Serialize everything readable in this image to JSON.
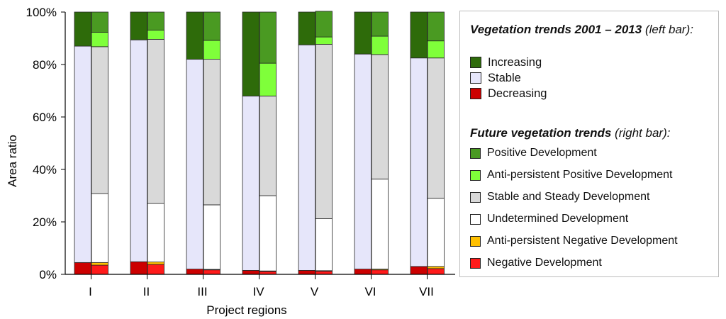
{
  "chart_data": {
    "type": "stacked-bar",
    "xlabel": "Project regions",
    "ylabel": "Area ratio",
    "ylim": [
      0,
      100
    ],
    "yticks": [
      "0%",
      "20%",
      "40%",
      "60%",
      "80%",
      "100%"
    ],
    "categories": [
      "I",
      "II",
      "III",
      "IV",
      "V",
      "VI",
      "VII"
    ],
    "left_bar": {
      "title": "Vegetation trends 2001 – 2013",
      "title_suffix": "(left bar):",
      "series": [
        {
          "name": "Decreasing",
          "color": "#cc0000",
          "values": [
            4.5,
            4.8,
            2,
            1.5,
            1.5,
            2,
            3
          ]
        },
        {
          "name": "Stable",
          "color": "#e6e6fa",
          "values": [
            82.5,
            84.6,
            80,
            66.5,
            86,
            82,
            79.5
          ]
        },
        {
          "name": "Increasing",
          "color": "#2e6b0a",
          "values": [
            13,
            10.6,
            18,
            32,
            12.5,
            16,
            17.5
          ]
        }
      ],
      "legend_order": [
        "Increasing",
        "Stable",
        "Decreasing"
      ]
    },
    "right_bar": {
      "title": "Future vegetation trends",
      "title_suffix": "(right bar):",
      "series": [
        {
          "name": "Negative Development",
          "color": "#ff1a1a",
          "values": [
            3.5,
            3.8,
            1.7,
            1.1,
            1.2,
            1.7,
            2.2
          ]
        },
        {
          "name": "Anti-persistent Negative Development",
          "color": "#ffc000",
          "values": [
            1.0,
            0.9,
            0.2,
            0.2,
            0.2,
            0.3,
            0.8
          ]
        },
        {
          "name": "Undetermined Development",
          "color": "#ffffff",
          "values": [
            26.3,
            22.3,
            24.6,
            28.7,
            19.8,
            34.3,
            26
          ]
        },
        {
          "name": "Stable and Steady Development",
          "color": "#d9d9d9",
          "values": [
            56,
            62.6,
            55.5,
            38,
            66.5,
            47.5,
            53.5
          ]
        },
        {
          "name": "Anti-persistent Positive Development",
          "color": "#7fff3a",
          "values": [
            5.5,
            3.5,
            7.2,
            12.5,
            2.8,
            7,
            6.5
          ]
        },
        {
          "name": "Positive Development",
          "color": "#4a9a22",
          "values": [
            7.7,
            6.9,
            10.8,
            19.5,
            9.8,
            9.2,
            11
          ]
        }
      ],
      "legend_order": [
        "Positive Development",
        "Anti-persistent Positive Development",
        "Stable and Steady Development",
        "Undetermined Development",
        "Anti-persistent Negative Development",
        "Negative Development"
      ]
    }
  }
}
